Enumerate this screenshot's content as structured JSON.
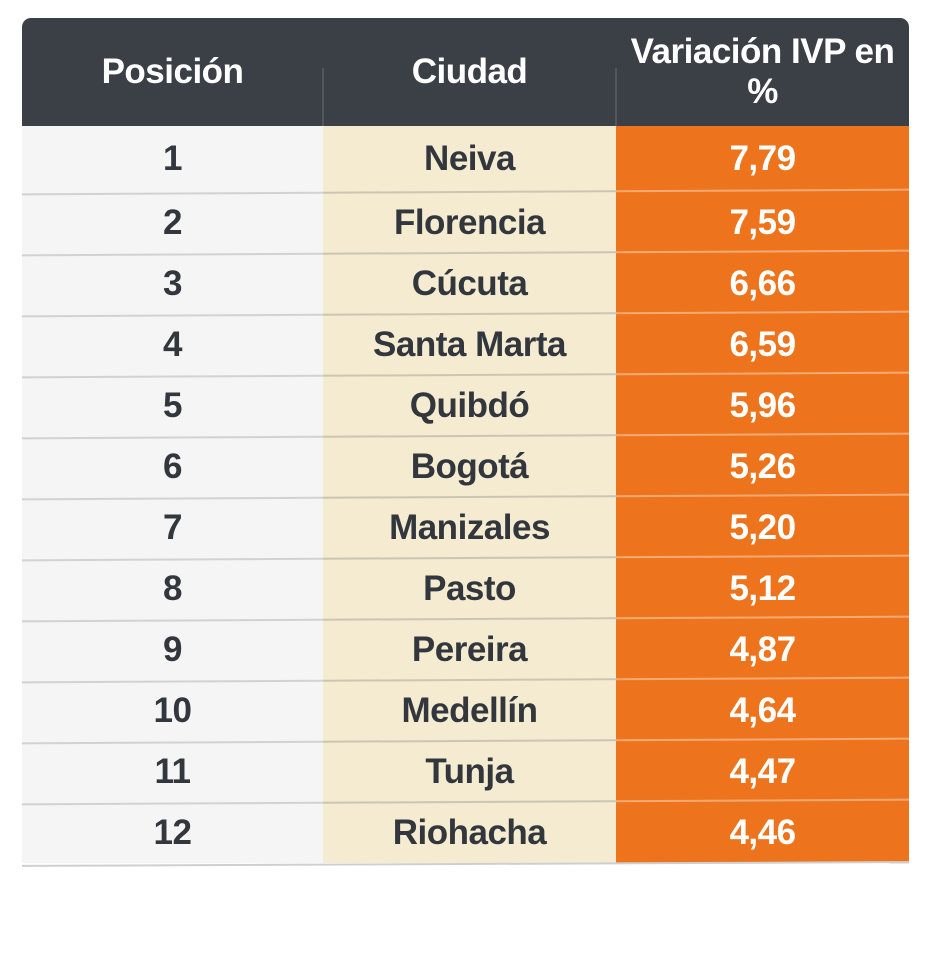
{
  "table": {
    "columns": [
      {
        "id": "posicion",
        "label": "Posición"
      },
      {
        "id": "ciudad",
        "label": "Ciudad"
      },
      {
        "id": "variacion",
        "label": "Variación IVP en %"
      }
    ],
    "rows": [
      {
        "posicion": "1",
        "ciudad": "Neiva",
        "variacion": "7,79"
      },
      {
        "posicion": "2",
        "ciudad": "Florencia",
        "variacion": "7,59"
      },
      {
        "posicion": "3",
        "ciudad": "Cúcuta",
        "variacion": "6,66"
      },
      {
        "posicion": "4",
        "ciudad": "Santa Marta",
        "variacion": "6,59"
      },
      {
        "posicion": "5",
        "ciudad": "Quibdó",
        "variacion": "5,96"
      },
      {
        "posicion": "6",
        "ciudad": "Bogotá",
        "variacion": "5,26"
      },
      {
        "posicion": "7",
        "ciudad": "Manizales",
        "variacion": "5,20"
      },
      {
        "posicion": "8",
        "ciudad": "Pasto",
        "variacion": "5,12"
      },
      {
        "posicion": "9",
        "ciudad": "Pereira",
        "variacion": "4,87"
      },
      {
        "posicion": "10",
        "ciudad": "Medellín",
        "variacion": "4,64"
      },
      {
        "posicion": "11",
        "ciudad": "Tunja",
        "variacion": "4,47"
      },
      {
        "posicion": "12",
        "ciudad": "Riohacha",
        "variacion": "4,46"
      }
    ]
  },
  "chart_data": {
    "type": "table",
    "columns": [
      "Posición",
      "Ciudad",
      "Variación IVP en %"
    ],
    "rows": [
      [
        1,
        "Neiva",
        "7,79"
      ],
      [
        2,
        "Florencia",
        "7,59"
      ],
      [
        3,
        "Cúcuta",
        "6,66"
      ],
      [
        4,
        "Santa Marta",
        "6,59"
      ],
      [
        5,
        "Quibdó",
        "5,96"
      ],
      [
        6,
        "Bogotá",
        "5,26"
      ],
      [
        7,
        "Manizales",
        "5,20"
      ],
      [
        8,
        "Pasto",
        "5,12"
      ],
      [
        9,
        "Pereira",
        "4,87"
      ],
      [
        10,
        "Medellín",
        "4,64"
      ],
      [
        11,
        "Tunja",
        "4,47"
      ],
      [
        12,
        "Riohacha",
        "4,46"
      ]
    ],
    "values_numeric": [
      7.79,
      7.59,
      6.66,
      6.59,
      5.96,
      5.26,
      5.2,
      5.12,
      4.87,
      4.64,
      4.47,
      4.46
    ]
  },
  "colors": {
    "header_bg": "#3A4046",
    "position_col_bg": "#F5F5F6",
    "city_col_bg": "#F4EBD1",
    "value_col_bg": "#ED741C",
    "header_text": "#FFFFFF",
    "body_text": "#32373D",
    "value_text": "#FFFFFF",
    "divider": "#D2D2D2"
  }
}
